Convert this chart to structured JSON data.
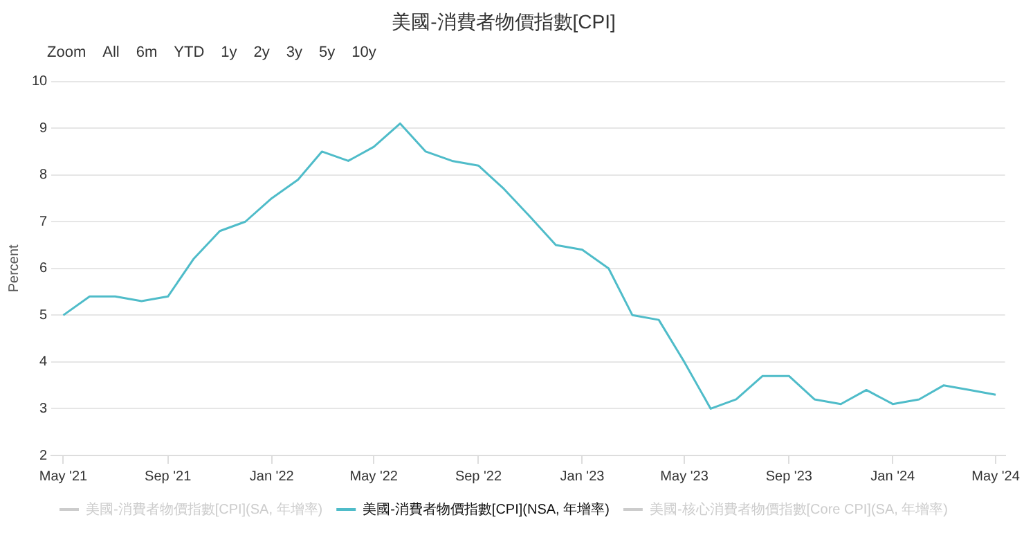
{
  "chart_data": {
    "type": "line",
    "title": "美國-消費者物價指數[CPI]",
    "ylabel": "Percent",
    "annotations": [
      "Zoom",
      "All",
      "6m",
      "YTD",
      "1y",
      "2y",
      "3y",
      "5y",
      "10y"
    ],
    "x": [
      "2021-05",
      "2021-06",
      "2021-07",
      "2021-08",
      "2021-09",
      "2021-10",
      "2021-11",
      "2021-12",
      "2022-01",
      "2022-02",
      "2022-03",
      "2022-04",
      "2022-05",
      "2022-06",
      "2022-07",
      "2022-08",
      "2022-09",
      "2022-10",
      "2022-11",
      "2022-12",
      "2023-01",
      "2023-02",
      "2023-03",
      "2023-04",
      "2023-05",
      "2023-06",
      "2023-07",
      "2023-08",
      "2023-09",
      "2023-10",
      "2023-11",
      "2023-12",
      "2024-01",
      "2024-02",
      "2024-03",
      "2024-04",
      "2024-05"
    ],
    "series": [
      {
        "name": "美國-消費者物價指數[CPI](SA, 年增率)",
        "color": "#cccccc",
        "values": [
          null,
          null,
          null,
          null,
          null,
          null,
          null,
          null,
          null,
          null,
          null,
          null,
          null,
          null,
          null,
          null,
          null,
          null,
          null,
          null,
          null,
          null,
          null,
          null,
          null,
          null,
          null,
          null,
          null,
          null,
          null,
          null,
          null,
          null,
          null,
          null,
          null
        ]
      },
      {
        "name": "美國-消費者物價指數[CPI](NSA, 年增率)",
        "color": "#4fbcc9",
        "values": [
          5.0,
          5.4,
          5.4,
          5.3,
          5.4,
          6.2,
          6.8,
          7.0,
          7.5,
          7.9,
          8.5,
          8.3,
          8.6,
          9.1,
          8.5,
          8.3,
          8.2,
          7.7,
          7.1,
          6.5,
          6.4,
          6.0,
          5.0,
          4.9,
          4.0,
          3.0,
          3.2,
          3.7,
          3.7,
          3.2,
          3.1,
          3.4,
          3.1,
          3.2,
          3.5,
          3.4,
          3.3
        ]
      },
      {
        "name": "美國-核心消費者物價指數[Core CPI](SA, 年增率)",
        "color": "#cccccc",
        "values": [
          null,
          null,
          null,
          null,
          null,
          null,
          null,
          null,
          null,
          null,
          null,
          null,
          null,
          null,
          null,
          null,
          null,
          null,
          null,
          null,
          null,
          null,
          null,
          null,
          null,
          null,
          null,
          null,
          null,
          null,
          null,
          null,
          null,
          null,
          null,
          null,
          null
        ]
      }
    ],
    "xlim": [
      "2021-04-17",
      "2024-05-12"
    ],
    "xticks": [
      {
        "value": "2021-05",
        "label": "May '21"
      },
      {
        "value": "2021-09",
        "label": "Sep '21"
      },
      {
        "value": "2022-01",
        "label": "Jan '22"
      },
      {
        "value": "2022-05",
        "label": "May '22"
      },
      {
        "value": "2022-09",
        "label": "Sep '22"
      },
      {
        "value": "2023-01",
        "label": "Jan '23"
      },
      {
        "value": "2023-05",
        "label": "May '23"
      },
      {
        "value": "2023-09",
        "label": "Sep '23"
      },
      {
        "value": "2024-01",
        "label": "Jan '24"
      },
      {
        "value": "2024-05",
        "label": "May '24"
      }
    ],
    "ylim": [
      2,
      10
    ],
    "yticks": [
      2,
      3,
      4,
      5,
      6,
      7,
      8,
      9,
      10
    ],
    "grid": "y",
    "legend": "bottom",
    "marker": "none",
    "line_style": "solid"
  }
}
